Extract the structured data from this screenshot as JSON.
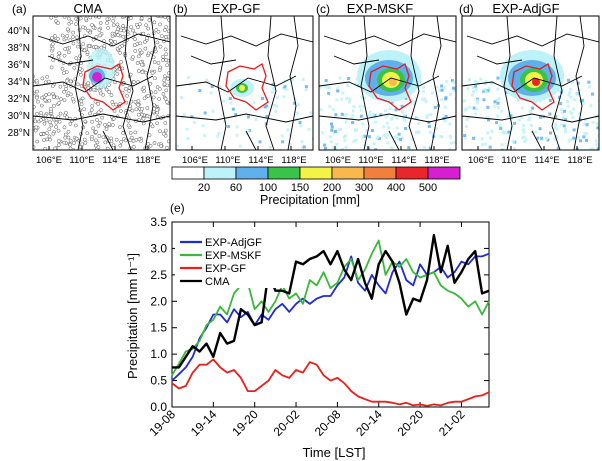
{
  "figure": {
    "map_panels": [
      {
        "label": "(a)",
        "title": "CMA"
      },
      {
        "label": "(b)",
        "title": "EXP-GF"
      },
      {
        "label": "(c)",
        "title": "EXP-MSKF"
      },
      {
        "label": "(d)",
        "title": "EXP-AdjGF"
      }
    ],
    "lat_labels": [
      "40°N",
      "38°N",
      "36°N",
      "34°N",
      "32°N",
      "30°N",
      "28°N"
    ],
    "lon_labels": [
      "106°E",
      "110°E",
      "114°E",
      "118°E"
    ],
    "colorbar": {
      "title": "Precipitation [mm]",
      "ticks": [
        "20",
        "60",
        "100",
        "150",
        "200",
        "300",
        "400",
        "500"
      ],
      "colors": [
        "#ffffff",
        "#bdf2f8",
        "#5fb0ec",
        "#39c34a",
        "#f3f247",
        "#f8b84e",
        "#f37f3c",
        "#e8262c",
        "#d61fd1"
      ]
    },
    "line_panel_label": "(e)"
  },
  "chart_data": {
    "type": "line",
    "xlabel": "Time [LST]",
    "ylabel": "Precipitation [mm h⁻¹]",
    "ylim": [
      0,
      3.5
    ],
    "yticks": [
      "0.0",
      "0.5",
      "1.0",
      "1.5",
      "2.0",
      "2.5",
      "3.0",
      "3.5"
    ],
    "xticks": [
      "19-08",
      "19-14",
      "19-20",
      "20-02",
      "20-08",
      "20-14",
      "20-20",
      "21-02"
    ],
    "x": [
      0,
      1,
      2,
      3,
      4,
      5,
      6,
      7,
      8,
      9,
      10,
      11,
      12,
      13,
      14,
      15,
      16,
      17,
      18,
      19,
      20,
      21,
      22,
      23,
      24,
      25,
      26,
      27,
      28,
      29,
      30,
      31,
      32,
      33,
      34,
      35,
      36,
      37,
      38,
      39,
      40,
      41,
      42,
      43,
      44,
      45,
      46
    ],
    "legend_position": "top-left",
    "series": [
      {
        "name": "EXP-AdjGF",
        "color": "#1f2bd4",
        "values": [
          0.5,
          0.62,
          0.75,
          0.95,
          1.3,
          1.5,
          1.75,
          1.75,
          1.6,
          1.85,
          1.7,
          1.8,
          1.55,
          1.75,
          1.65,
          1.85,
          1.95,
          1.8,
          1.95,
          2.05,
          1.95,
          2.05,
          2.1,
          2.1,
          2.3,
          2.45,
          2.85,
          2.35,
          2.2,
          2.5,
          2.3,
          2.15,
          2.55,
          2.75,
          2.4,
          2.3,
          2.7,
          2.5,
          2.55,
          2.65,
          2.45,
          2.55,
          2.75,
          2.7,
          2.85,
          2.85,
          2.9
        ]
      },
      {
        "name": "EXP-MSKF",
        "color": "#39b83a",
        "values": [
          0.6,
          0.82,
          1.05,
          1.1,
          1.25,
          1.55,
          1.65,
          1.9,
          1.75,
          2.15,
          2.3,
          2.35,
          1.85,
          2.0,
          1.8,
          2.0,
          2.3,
          2.05,
          2.15,
          1.95,
          2.4,
          2.3,
          2.55,
          2.25,
          2.35,
          2.65,
          2.8,
          2.4,
          2.6,
          2.9,
          3.15,
          2.5,
          2.75,
          2.65,
          2.8,
          2.55,
          2.45,
          2.5,
          2.55,
          2.3,
          2.2,
          2.15,
          2.05,
          1.9,
          2.0,
          1.75,
          2.0
        ]
      },
      {
        "name": "EXP-GF",
        "color": "#e8201e",
        "values": [
          0.45,
          0.35,
          0.4,
          0.65,
          0.8,
          0.8,
          0.9,
          0.75,
          0.65,
          0.7,
          0.55,
          0.3,
          0.3,
          0.4,
          0.5,
          0.7,
          0.6,
          0.55,
          0.7,
          0.65,
          0.85,
          0.8,
          0.6,
          0.5,
          0.55,
          0.45,
          0.3,
          0.2,
          0.15,
          0.1,
          0.1,
          0.1,
          0.08,
          0.05,
          0.08,
          0.03,
          0.05,
          0.02,
          0.05,
          0.03,
          0.08,
          0.1,
          0.1,
          0.15,
          0.2,
          0.22,
          0.28
        ]
      },
      {
        "name": "CMA",
        "color": "#000000",
        "values": [
          0.75,
          0.75,
          0.95,
          1.15,
          1.05,
          1.2,
          0.95,
          1.4,
          1.2,
          1.25,
          1.85,
          1.75,
          1.55,
          1.6,
          2.55,
          2.2,
          2.2,
          2.15,
          2.75,
          2.7,
          2.8,
          2.85,
          2.95,
          2.7,
          2.95,
          2.6,
          2.4,
          2.8,
          2.35,
          2.05,
          2.7,
          2.95,
          2.75,
          2.35,
          1.75,
          2.05,
          2.0,
          2.4,
          3.25,
          2.55,
          3.05,
          2.35,
          2.55,
          2.8,
          2.95,
          2.15,
          2.2
        ]
      }
    ]
  }
}
